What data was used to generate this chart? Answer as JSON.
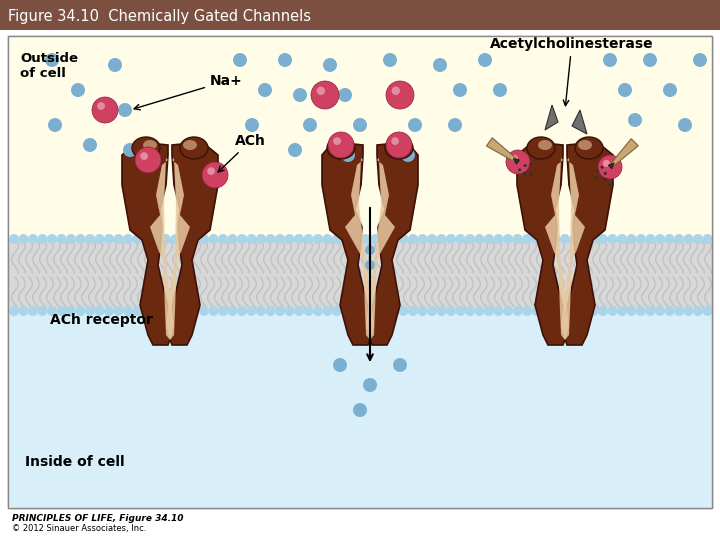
{
  "title": "Figure 34.10  Chemically Gated Channels",
  "title_bg": "#7B5040",
  "title_color": "#FFFFFF",
  "title_fontsize": 11,
  "bg_outside": "#FFFCE8",
  "bg_inside": "#D8EEF8",
  "channel_dark": "#6B2A10",
  "channel_mid": "#8B4020",
  "channel_light": "#D4A882",
  "channel_lighter": "#E8C8A0",
  "ach_color": "#D04060",
  "na_color": "#7AAFD0",
  "bead_color": "#AAD4E8",
  "membrane_gray": "#C8C8C8",
  "label_outside": "Outside\nof cell",
  "label_inside": "Inside of cell",
  "label_na": "Na+",
  "label_ach": "ACh",
  "label_receptor": "ACh receptor",
  "label_enzyme": "Acetylcholinesterase",
  "footer_line1": "PRINCIPLES OF LIFE, Figure 34.10",
  "footer_line2": "© 2012 Sinauer Associates, Inc."
}
